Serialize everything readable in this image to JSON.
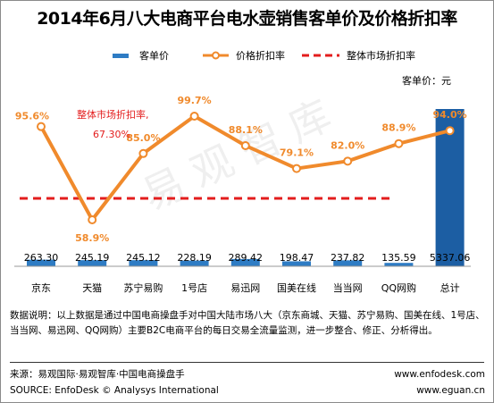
{
  "title": "2014年6月八大电商平台电水壶销售客单价及价格折扣率",
  "legend": {
    "bar": "客单价",
    "line": "价格折扣率",
    "dashed": "整体市场折扣率"
  },
  "unit_label": "客单价：元",
  "annotation": {
    "line1": "整体市场折扣率,",
    "line2": "67.30%"
  },
  "watermark": "易观智库",
  "note": "数据说明：以上数据是通过中国电商操盘手对中国大陆市场八大（京东商城、天猫、苏宁易购、国美在线、1号店、当当网、易迅网、QQ网购）主要B2C电商平台的每日交易全流量监测，进一步整合、修正、分析得出。",
  "footer": {
    "source_cn": "来源：易观国际·易观智库·中国电商操盘手",
    "source_en": "SOURCE: EnfoDesk © Analysys International",
    "url1": "www.enfodesk.com",
    "url2": "www.eguan.cn"
  },
  "colors": {
    "bar": "#2e7cc4",
    "bar_dark": "#1c5ea3",
    "line": "#f08a2c",
    "dashed": "#e31d1d",
    "label": "#f08a2c",
    "annotation": "#e31d1d"
  },
  "chart_data": {
    "type": "bar+line",
    "categories": [
      "京东",
      "天猫",
      "苏宁易购",
      "1号店",
      "易迅网",
      "国美在线",
      "当当网",
      "QQ网购",
      "总计"
    ],
    "bar_series": {
      "name": "客单价",
      "values": [
        263.3,
        245.19,
        245.12,
        228.19,
        289.42,
        198.47,
        237.82,
        135.59,
        5337.06
      ],
      "labels": [
        "263.30",
        "245.19",
        "245.12",
        "228.19",
        "289.42",
        "198.47",
        "237.82",
        "135.59",
        "5337.06"
      ]
    },
    "line_series": {
      "name": "价格折扣率",
      "values": [
        95.6,
        58.9,
        85.0,
        99.7,
        88.1,
        79.1,
        82.0,
        88.9,
        94.0
      ],
      "labels": [
        "95.6%",
        "58.9%",
        "85.0%",
        "99.7%",
        "88.1%",
        "79.1%",
        "82.0%",
        "88.9%",
        "94.0%"
      ]
    },
    "reference_line": {
      "name": "整体市场折扣率",
      "value": 67.3
    }
  }
}
